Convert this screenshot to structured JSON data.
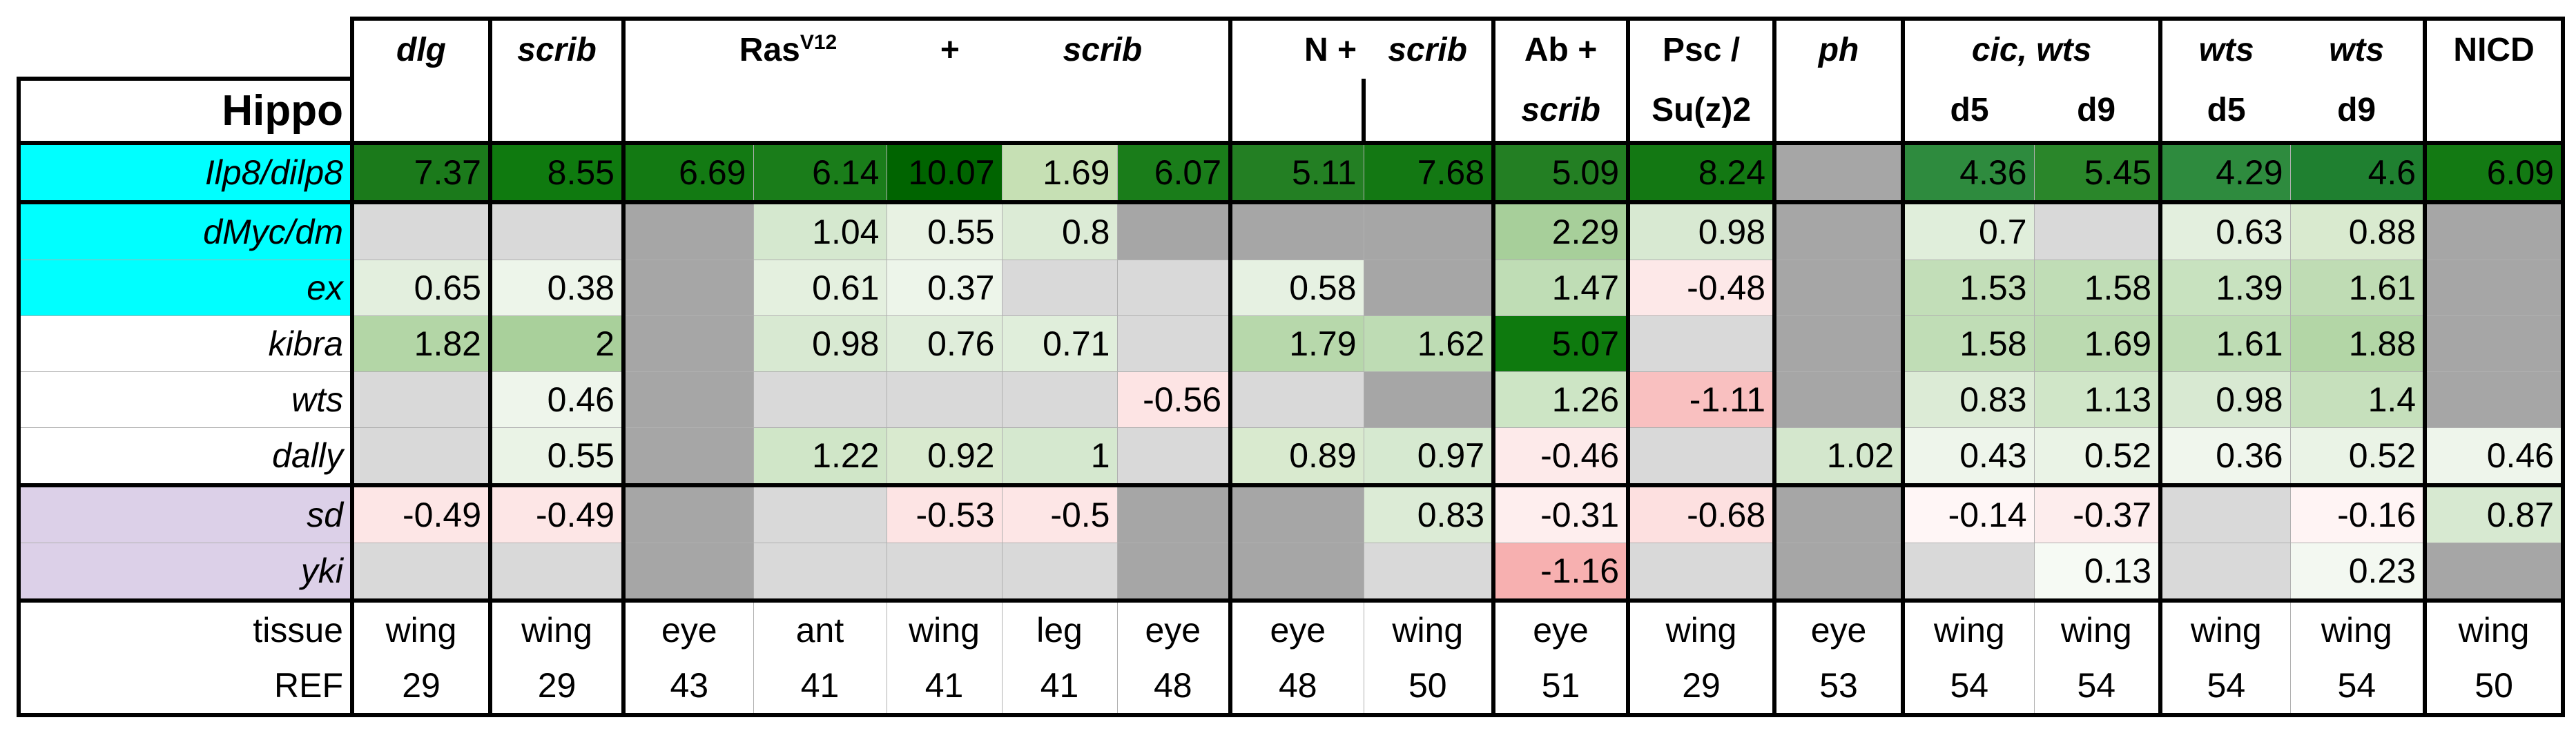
{
  "header": {
    "title": "Hippo",
    "row1": [
      "dlg",
      "scrib",
      "Ras",
      "V12",
      "+",
      "scrib",
      "N +",
      "scrib",
      "Ab +",
      "Psc /",
      "ph",
      "cic, wts",
      "wts",
      "wts",
      "NICD"
    ],
    "row2": [
      "scrib",
      "Su(z)2",
      "d5",
      "d9",
      "d5",
      "d9"
    ]
  },
  "rows": [
    {
      "label": "Ilp8/dilp8",
      "label_color": "#00ffff",
      "values": [
        7.37,
        8.55,
        6.69,
        6.14,
        10.07,
        1.69,
        6.07,
        5.11,
        7.68,
        5.09,
        8.24,
        null,
        4.36,
        5.45,
        4.29,
        4.6,
        6.09
      ],
      "colors": [
        "#1b7a1b",
        "#0f7a0f",
        "#137a13",
        "#1a7d1a",
        "#006400",
        "#c6e0b4",
        "#1a7d1a",
        "#237f23",
        "#137813",
        "#237f23",
        "#137813",
        "#a6a6a6",
        "#2e8b3e",
        "#2a862a",
        "#2e8b3e",
        "#1f8030",
        "#137a13"
      ]
    },
    {
      "label": "dMyc/dm",
      "label_color": "#00ffff",
      "values": [
        null,
        null,
        null,
        1.04,
        0.55,
        0.8,
        null,
        null,
        null,
        2.29,
        0.98,
        null,
        0.7,
        null,
        0.63,
        0.88,
        null
      ],
      "colors": [
        "#d9d9d9",
        "#d9d9d9",
        "#a6a6a6",
        "#d5e8cf",
        "#e8f2e3",
        "#dcebd6",
        "#a6a6a6",
        "#a6a6a6",
        "#a6a6a6",
        "#a7cf9a",
        "#d8e9d2",
        "#a6a6a6",
        "#e0eedb",
        "#d9d9d9",
        "#e3efde",
        "#d9eacf",
        "#a6a6a6"
      ]
    },
    {
      "label": "ex",
      "label_color": "#00ffff",
      "values": [
        0.65,
        0.38,
        null,
        0.61,
        0.37,
        null,
        null,
        0.58,
        null,
        1.47,
        -0.48,
        null,
        1.53,
        1.58,
        1.39,
        1.61,
        null
      ],
      "colors": [
        "#e3efde",
        "#edf5ea",
        "#a6a6a6",
        "#e4f0df",
        "#edf5ea",
        "#d9d9d9",
        "#d9d9d9",
        "#e6f1e2",
        "#a6a6a6",
        "#bfddb5",
        "#fde8e8",
        "#a6a6a6",
        "#c2deb8",
        "#c0ddb6",
        "#c8e2bf",
        "#bfdcb4",
        "#a6a6a6"
      ]
    },
    {
      "label": "kibra",
      "label_color": "#ffffff",
      "values": [
        1.82,
        2,
        null,
        0.98,
        0.76,
        0.71,
        null,
        1.79,
        1.62,
        5.07,
        null,
        null,
        1.58,
        1.69,
        1.61,
        1.88,
        null
      ],
      "colors": [
        "#b3d6a6",
        "#a9d09b",
        "#a6a6a6",
        "#d8e9d2",
        "#dfedda",
        "#e0eedb",
        "#d9d9d9",
        "#b7d8ab",
        "#bedcb4",
        "#0e7a0e",
        "#d9d9d9",
        "#a6a6a6",
        "#c0ddb6",
        "#bbdab0",
        "#bedcb4",
        "#b3d6a6",
        "#a6a6a6"
      ]
    },
    {
      "label": "wts",
      "label_color": "#ffffff",
      "values": [
        null,
        0.46,
        null,
        null,
        null,
        null,
        -0.56,
        null,
        null,
        1.26,
        -1.11,
        null,
        0.83,
        1.13,
        0.98,
        1.4,
        null
      ],
      "colors": [
        "#d9d9d9",
        "#eef5eb",
        "#a6a6a6",
        "#d9d9d9",
        "#d9d9d9",
        "#d9d9d9",
        "#fde4e4",
        "#d9d9d9",
        "#a6a6a6",
        "#cde5c5",
        "#f9c0c0",
        "#a6a6a6",
        "#dcebd6",
        "#d0e6c8",
        "#d8e9d2",
        "#c6e0bc",
        "#a6a6a6"
      ]
    },
    {
      "label": "dally",
      "label_color": "#ffffff",
      "values": [
        null,
        0.55,
        null,
        1.22,
        0.92,
        1,
        null,
        0.89,
        0.97,
        -0.46,
        null,
        1.02,
        0.43,
        0.52,
        0.36,
        0.52,
        0.46
      ],
      "colors": [
        "#d9d9d9",
        "#eaf3e6",
        "#a6a6a6",
        "#d0e6c8",
        "#d9eacf",
        "#d5e8cf",
        "#d9d9d9",
        "#d9eacf",
        "#d6e9d0",
        "#fdeaea",
        "#d9d9d9",
        "#d4e7cd",
        "#eef5eb",
        "#eaf3e6",
        "#f0f6ed",
        "#eaf3e6",
        "#eef5eb"
      ]
    },
    {
      "label": "sd",
      "label_color": "#dcd0e8",
      "values": [
        -0.49,
        -0.49,
        null,
        null,
        -0.53,
        -0.5,
        null,
        null,
        0.83,
        -0.31,
        -0.68,
        null,
        -0.14,
        -0.37,
        null,
        -0.16,
        0.87
      ],
      "colors": [
        "#fde6e6",
        "#fde6e6",
        "#a6a6a6",
        "#d9d9d9",
        "#fde4e4",
        "#fde6e6",
        "#a6a6a6",
        "#a6a6a6",
        "#dcebd6",
        "#feeeee",
        "#fde0e0",
        "#a6a6a6",
        "#fff6f6",
        "#fdeded",
        "#d9d9d9",
        "#fff4f4",
        "#d7e9d1"
      ]
    },
    {
      "label": "yki",
      "label_color": "#dcd0e8",
      "values": [
        null,
        null,
        null,
        null,
        null,
        null,
        null,
        null,
        null,
        -1.16,
        null,
        null,
        null,
        0.13,
        null,
        0.23,
        null
      ],
      "colors": [
        "#d9d9d9",
        "#d9d9d9",
        "#a6a6a6",
        "#d9d9d9",
        "#d9d9d9",
        "#d9d9d9",
        "#a6a6a6",
        "#a6a6a6",
        "#d9d9d9",
        "#f7b0b0",
        "#d9d9d9",
        "#a6a6a6",
        "#d9d9d9",
        "#f6faf4",
        "#d9d9d9",
        "#f3f8f1",
        "#a6a6a6"
      ]
    }
  ],
  "tissue": {
    "label": "tissue",
    "values": [
      "wing",
      "wing",
      "eye",
      "ant",
      "wing",
      "leg",
      "eye",
      "eye",
      "wing",
      "eye",
      "wing",
      "eye",
      "wing",
      "wing",
      "wing",
      "wing",
      "wing"
    ]
  },
  "ref": {
    "label": "REF",
    "values": [
      29,
      29,
      43,
      41,
      41,
      41,
      48,
      48,
      50,
      51,
      29,
      53,
      54,
      54,
      54,
      54,
      50
    ]
  }
}
